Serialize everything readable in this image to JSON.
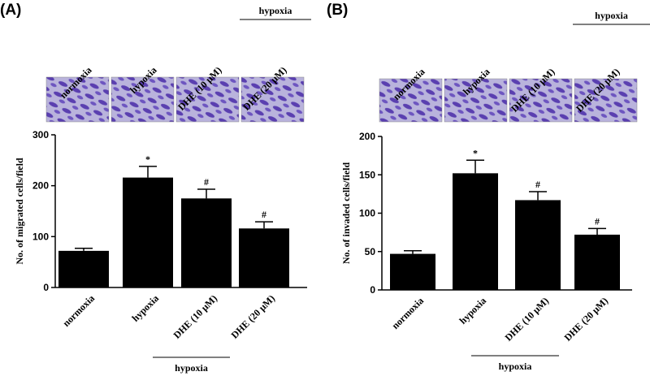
{
  "chart_data": [
    {
      "type": "bar",
      "panel_label": "(A)",
      "group_label": "hypoxia",
      "ylabel": "No. of migrated cells/field",
      "categories": [
        "normoxia",
        "hypoxia",
        "DHE (10 μM)",
        "DHE (20 μM)"
      ],
      "values": [
        72,
        216,
        175,
        116
      ],
      "errors": [
        5,
        22,
        18,
        13
      ],
      "annotations": [
        null,
        "*",
        "#",
        "#"
      ],
      "color": "#000000",
      "ylim": [
        0,
        300
      ],
      "yticks": [
        0,
        100,
        200,
        300
      ]
    },
    {
      "type": "bar",
      "panel_label": "(B)",
      "group_label": "hypoxia",
      "ylabel": "No. of invaded cells/field",
      "categories": [
        "normoxia",
        "hypoxia",
        "DHE (10 μM)",
        "DHE (20 μM)"
      ],
      "values": [
        47,
        152,
        117,
        72
      ],
      "errors": [
        4,
        17,
        11,
        8
      ],
      "annotations": [
        null,
        "*",
        "#",
        "#"
      ],
      "color": "#000000",
      "ylim": [
        0,
        200
      ],
      "yticks": [
        0,
        50,
        100,
        150,
        200
      ]
    }
  ]
}
